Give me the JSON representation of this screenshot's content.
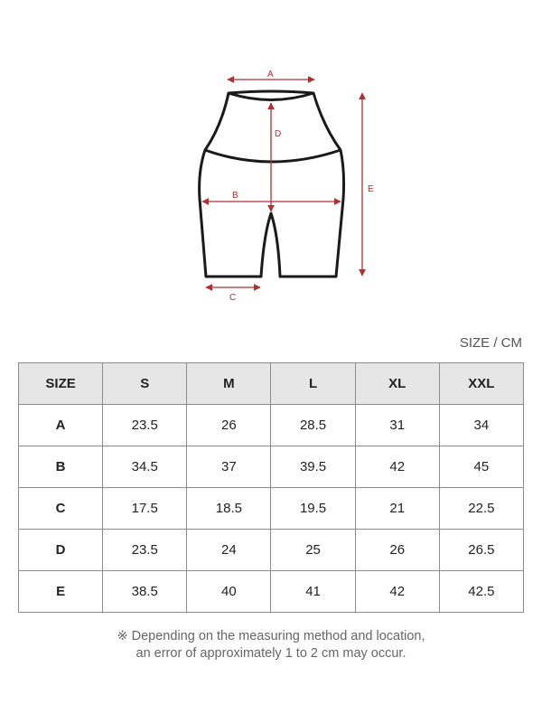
{
  "diagram": {
    "labels": {
      "a": "A",
      "b": "B",
      "c": "C",
      "d": "D",
      "e": "E"
    },
    "arrow_color": "#b03030"
  },
  "unit_label": "SIZE / CM",
  "table": {
    "headers": [
      "SIZE",
      "S",
      "M",
      "L",
      "XL",
      "XXL"
    ],
    "rows": [
      [
        "A",
        "23.5",
        "26",
        "28.5",
        "31",
        "34"
      ],
      [
        "B",
        "34.5",
        "37",
        "39.5",
        "42",
        "45"
      ],
      [
        "C",
        "17.5",
        "18.5",
        "19.5",
        "21",
        "22.5"
      ],
      [
        "D",
        "23.5",
        "24",
        "25",
        "26",
        "26.5"
      ],
      [
        "E",
        "38.5",
        "40",
        "41",
        "42",
        "42.5"
      ]
    ]
  },
  "note": {
    "line1": "※ Depending on the measuring method and location,",
    "line2": "an error of approximately 1 to 2 cm may occur."
  }
}
